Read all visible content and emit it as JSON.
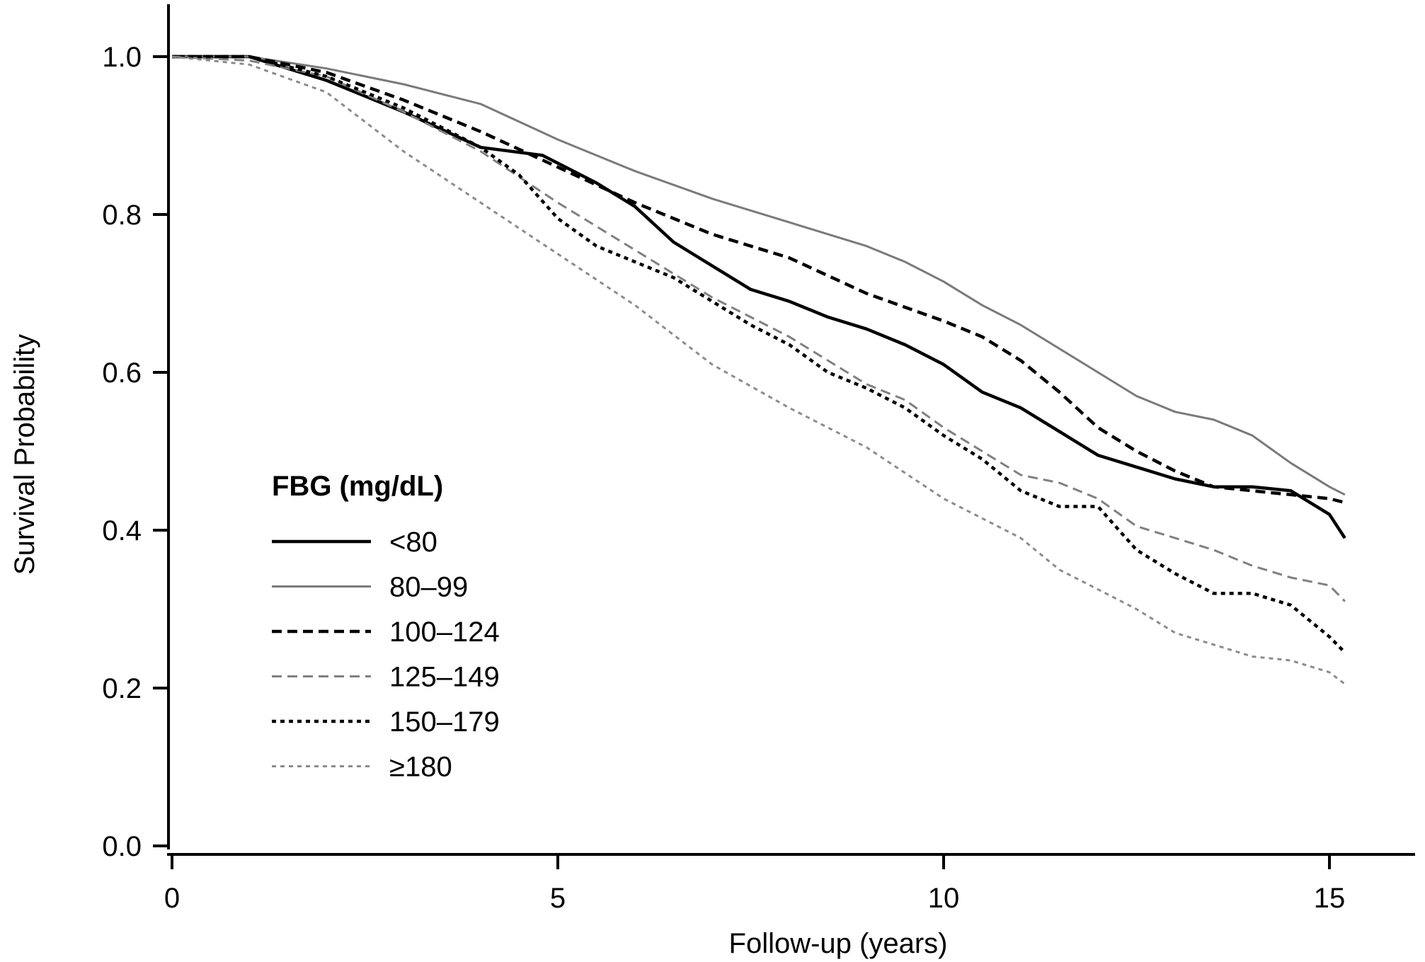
{
  "chart_data": {
    "type": "line",
    "title": "",
    "xlabel": "Follow-up (years)",
    "ylabel": "Survival Probability",
    "xlim": [
      0,
      15.5
    ],
    "ylim": [
      0,
      1.05
    ],
    "xticks": [
      0,
      5,
      10,
      15
    ],
    "xtick_labels": [
      "0",
      "5",
      "10",
      "15"
    ],
    "yticks": [
      0.0,
      0.2,
      0.4,
      0.6,
      0.8,
      1.0
    ],
    "ytick_labels": [
      "0.0",
      "0.2",
      "0.4",
      "0.6",
      "0.8",
      "1.0"
    ],
    "grid": false,
    "legend": {
      "title": "FBG (mg/dL)",
      "placement": "lower-left"
    },
    "series": [
      {
        "name": "<80",
        "color": "#000000",
        "style": "solid",
        "points": [
          [
            0,
            1.0
          ],
          [
            1.0,
            1.0
          ],
          [
            2.0,
            0.97
          ],
          [
            3.0,
            0.93
          ],
          [
            4.0,
            0.885
          ],
          [
            4.8,
            0.875
          ],
          [
            5.5,
            0.84
          ],
          [
            6.0,
            0.81
          ],
          [
            6.5,
            0.765
          ],
          [
            7.0,
            0.735
          ],
          [
            7.5,
            0.705
          ],
          [
            8.0,
            0.69
          ],
          [
            8.5,
            0.67
          ],
          [
            9.0,
            0.655
          ],
          [
            9.5,
            0.635
          ],
          [
            10.0,
            0.61
          ],
          [
            10.5,
            0.575
          ],
          [
            11.0,
            0.555
          ],
          [
            11.5,
            0.525
          ],
          [
            12.0,
            0.495
          ],
          [
            12.5,
            0.48
          ],
          [
            13.0,
            0.465
          ],
          [
            13.5,
            0.455
          ],
          [
            14.0,
            0.455
          ],
          [
            14.5,
            0.45
          ],
          [
            15.0,
            0.42
          ],
          [
            15.2,
            0.39
          ]
        ]
      },
      {
        "name": "80–99",
        "color": "#7a7a7a",
        "style": "solid",
        "points": [
          [
            0,
            1.0
          ],
          [
            1.0,
            1.0
          ],
          [
            2.0,
            0.985
          ],
          [
            3.0,
            0.965
          ],
          [
            4.0,
            0.94
          ],
          [
            5.0,
            0.895
          ],
          [
            6.0,
            0.855
          ],
          [
            7.0,
            0.82
          ],
          [
            8.0,
            0.79
          ],
          [
            9.0,
            0.76
          ],
          [
            9.5,
            0.74
          ],
          [
            10.0,
            0.715
          ],
          [
            10.5,
            0.685
          ],
          [
            11.0,
            0.66
          ],
          [
            11.5,
            0.63
          ],
          [
            12.0,
            0.6
          ],
          [
            12.5,
            0.57
          ],
          [
            13.0,
            0.55
          ],
          [
            13.5,
            0.54
          ],
          [
            14.0,
            0.52
          ],
          [
            14.5,
            0.485
          ],
          [
            15.0,
            0.455
          ],
          [
            15.2,
            0.445
          ]
        ]
      },
      {
        "name": "100–124",
        "color": "#000000",
        "style": "dash",
        "points": [
          [
            0,
            1.0
          ],
          [
            1.0,
            1.0
          ],
          [
            2.0,
            0.98
          ],
          [
            3.0,
            0.945
          ],
          [
            4.0,
            0.905
          ],
          [
            5.0,
            0.86
          ],
          [
            6.0,
            0.815
          ],
          [
            7.0,
            0.775
          ],
          [
            8.0,
            0.745
          ],
          [
            9.0,
            0.7
          ],
          [
            10.0,
            0.665
          ],
          [
            10.5,
            0.645
          ],
          [
            11.0,
            0.615
          ],
          [
            11.5,
            0.575
          ],
          [
            12.0,
            0.53
          ],
          [
            12.5,
            0.5
          ],
          [
            13.0,
            0.475
          ],
          [
            13.5,
            0.455
          ],
          [
            14.0,
            0.45
          ],
          [
            14.5,
            0.445
          ],
          [
            15.0,
            0.44
          ],
          [
            15.2,
            0.435
          ]
        ]
      },
      {
        "name": "125–149",
        "color": "#808080",
        "style": "dash",
        "points": [
          [
            0,
            1.0
          ],
          [
            1.0,
            0.995
          ],
          [
            2.0,
            0.975
          ],
          [
            3.0,
            0.93
          ],
          [
            4.0,
            0.88
          ],
          [
            5.0,
            0.815
          ],
          [
            6.0,
            0.755
          ],
          [
            7.0,
            0.695
          ],
          [
            8.0,
            0.645
          ],
          [
            9.0,
            0.585
          ],
          [
            9.5,
            0.565
          ],
          [
            10.0,
            0.53
          ],
          [
            10.5,
            0.5
          ],
          [
            11.0,
            0.47
          ],
          [
            11.5,
            0.46
          ],
          [
            12.0,
            0.44
          ],
          [
            12.5,
            0.405
          ],
          [
            13.0,
            0.39
          ],
          [
            13.5,
            0.375
          ],
          [
            14.0,
            0.355
          ],
          [
            14.5,
            0.34
          ],
          [
            15.0,
            0.33
          ],
          [
            15.2,
            0.31
          ]
        ]
      },
      {
        "name": "150–179",
        "color": "#000000",
        "style": "dot",
        "points": [
          [
            0,
            1.0
          ],
          [
            1.0,
            1.0
          ],
          [
            2.0,
            0.975
          ],
          [
            3.0,
            0.935
          ],
          [
            4.0,
            0.885
          ],
          [
            4.5,
            0.85
          ],
          [
            5.0,
            0.795
          ],
          [
            5.5,
            0.76
          ],
          [
            6.0,
            0.74
          ],
          [
            6.5,
            0.72
          ],
          [
            7.0,
            0.69
          ],
          [
            7.5,
            0.66
          ],
          [
            8.0,
            0.635
          ],
          [
            8.5,
            0.6
          ],
          [
            9.0,
            0.58
          ],
          [
            9.5,
            0.555
          ],
          [
            10.0,
            0.52
          ],
          [
            10.5,
            0.49
          ],
          [
            11.0,
            0.45
          ],
          [
            11.5,
            0.43
          ],
          [
            12.0,
            0.43
          ],
          [
            12.5,
            0.375
          ],
          [
            13.0,
            0.345
          ],
          [
            13.5,
            0.32
          ],
          [
            14.0,
            0.32
          ],
          [
            14.5,
            0.305
          ],
          [
            15.0,
            0.265
          ],
          [
            15.2,
            0.245
          ]
        ]
      },
      {
        "name": "≥180",
        "color": "#8c8c8c",
        "style": "dot",
        "points": [
          [
            0,
            1.0
          ],
          [
            1.0,
            0.99
          ],
          [
            2.0,
            0.955
          ],
          [
            3.0,
            0.88
          ],
          [
            4.0,
            0.815
          ],
          [
            5.0,
            0.75
          ],
          [
            6.0,
            0.685
          ],
          [
            7.0,
            0.61
          ],
          [
            8.0,
            0.555
          ],
          [
            9.0,
            0.505
          ],
          [
            10.0,
            0.44
          ],
          [
            11.0,
            0.39
          ],
          [
            11.5,
            0.35
          ],
          [
            12.0,
            0.325
          ],
          [
            12.5,
            0.3
          ],
          [
            13.0,
            0.27
          ],
          [
            13.5,
            0.255
          ],
          [
            14.0,
            0.24
          ],
          [
            14.5,
            0.235
          ],
          [
            15.0,
            0.22
          ],
          [
            15.2,
            0.205
          ]
        ]
      }
    ]
  }
}
